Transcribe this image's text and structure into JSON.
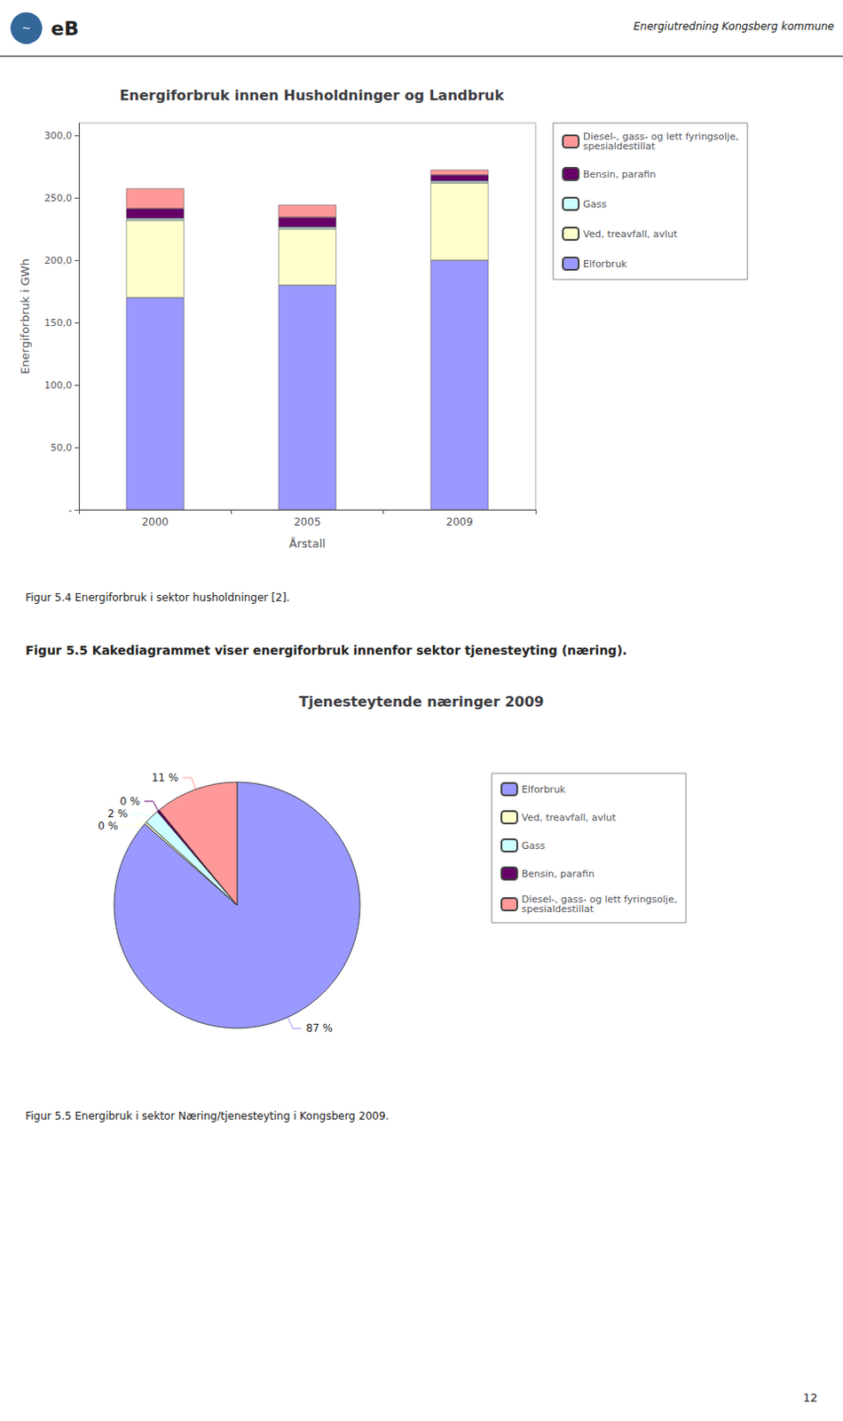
{
  "chart_data": [
    {
      "type": "bar",
      "stacked": true,
      "title": "Energiforbruk innen Husholdninger og Landbruk",
      "xlabel": "Årstall",
      "ylabel": "Energiforbruk i GWh",
      "categories": [
        "2000",
        "2005",
        "2009"
      ],
      "series": [
        {
          "name": "Elforbruk",
          "color": "#9999FF",
          "values": [
            170.0,
            180.0,
            200.0
          ]
        },
        {
          "name": "Ved, treavfall, avlut",
          "color": "#FFFFCC",
          "values": [
            62.0,
            45.0,
            62.0
          ]
        },
        {
          "name": "Gass",
          "color": "#CCFFFF",
          "values": [
            1.5,
            1.5,
            1.5
          ]
        },
        {
          "name": "Bensin, parafin",
          "color": "#660066",
          "values": [
            8.0,
            8.0,
            5.0
          ]
        },
        {
          "name": "Diesel-, gass- og lett fyringsolje,\nspesialdestillat",
          "color": "#FF9999",
          "values": [
            16.0,
            10.0,
            4.0
          ]
        }
      ],
      "ylim": [
        0,
        310
      ],
      "yticks": [
        {
          "value": 0,
          "label": "-"
        },
        {
          "value": 50,
          "label": "50,0"
        },
        {
          "value": 100,
          "label": "100,0"
        },
        {
          "value": 150,
          "label": "150,0"
        },
        {
          "value": 200,
          "label": "200,0"
        },
        {
          "value": 250,
          "label": "250,0"
        },
        {
          "value": 300,
          "label": "300,0"
        }
      ],
      "grid": false,
      "legend": "right",
      "annotations": [
        "Energiutredning Kongsberg kommune",
        "~",
        "eB",
        "Figur 5.4 Energiforbruk i sektor husholdninger [2]."
      ]
    },
    {
      "type": "pie",
      "title": "Tjenesteytende næringer 2009",
      "categories": [
        "Elforbruk",
        "Ved, treavfall, avlut",
        "Gass",
        "Bensin, parafin",
        "Diesel-, gass- og lett fyringsolje,\nspesialdestillat"
      ],
      "values": [
        87,
        0.3,
        2,
        0.3,
        11
      ],
      "value_labels": [
        "87 %",
        "0 %",
        "2 %",
        "0 %",
        "11 %"
      ],
      "colors": [
        "#9999FF",
        "#FFFFCC",
        "#CCFFFF",
        "#660066",
        "#FF9999"
      ],
      "data_labels": true,
      "legend": "right",
      "annotations": [
        "Figur 5.5 Kakediagrammet viser energiforbruk innenfor sektor tjenesteyting (næring).",
        "Figur 5.5 Energibruk i sektor Næring/tjenesteyting i Kongsberg 2009.",
        "12"
      ]
    }
  ]
}
